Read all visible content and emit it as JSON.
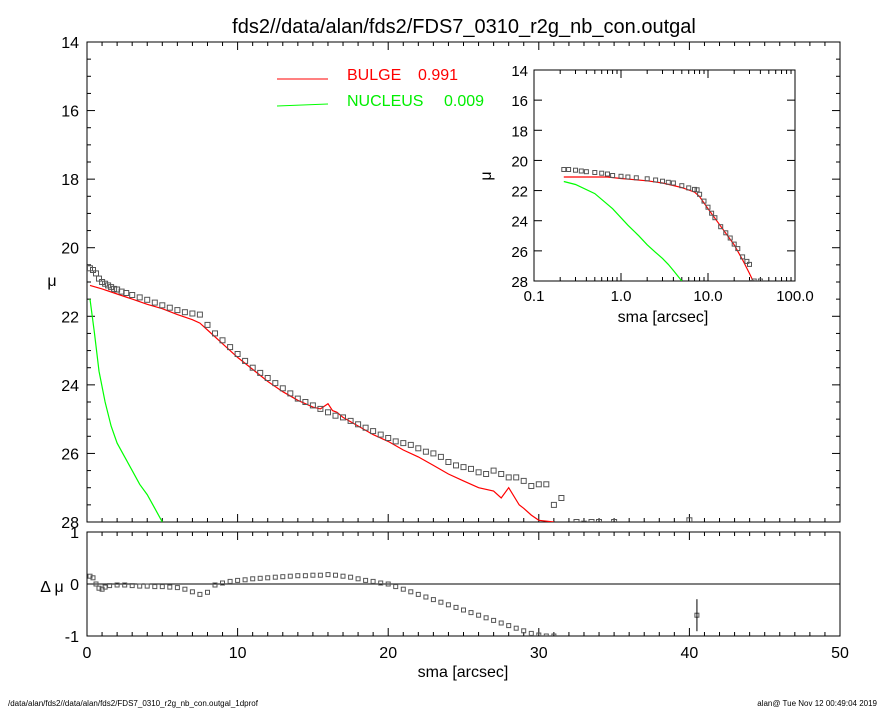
{
  "title": "fds2//data/alan/fds2/FDS7_0310_r2g_nb_con.outgal",
  "footer_left": "/data/alan/fds2//data/alan/fds2/FDS7_0310_r2g_nb_con.outgal_1dprof",
  "footer_right": "alan@  Tue Nov 12 00:49:04 2019",
  "colors": {
    "bulge": "#ff0000",
    "nucleus": "#00ff00",
    "data": "#555555",
    "axes": "#000000"
  },
  "chart_data": [
    {
      "id": "main",
      "type": "line",
      "xlabel": "sma [arcsec]",
      "ylabel": "μ",
      "xlim": [
        0,
        50
      ],
      "ylim": [
        28,
        14
      ],
      "yticks": [
        "14",
        "16",
        "18",
        "20",
        "22",
        "24",
        "26",
        "28"
      ],
      "xticks": [
        "0",
        "10",
        "20",
        "30",
        "40",
        "50"
      ],
      "legend": {
        "position": "top-center",
        "entries": [
          {
            "name": "BULGE",
            "value": "0.991",
            "color": "#ff0000"
          },
          {
            "name": "NUCLEUS",
            "value": "0.009",
            "color": "#00ff00"
          }
        ]
      },
      "series": [
        {
          "name": "BULGE",
          "style": "line",
          "x": [
            0.2,
            1,
            2,
            3,
            4,
            5,
            6,
            7,
            7.5,
            8,
            9,
            10,
            11,
            12,
            13,
            14,
            15,
            15.5,
            16,
            16.3,
            16.6,
            17,
            18,
            19,
            20,
            21,
            22,
            23,
            24,
            25,
            26,
            27,
            27.5,
            28,
            28.7,
            29,
            29.5,
            30,
            31
          ],
          "y": [
            21.1,
            21.2,
            21.35,
            21.5,
            21.65,
            21.78,
            21.95,
            22.1,
            22.2,
            22.4,
            22.8,
            23.2,
            23.55,
            23.9,
            24.2,
            24.45,
            24.65,
            24.7,
            24.55,
            24.75,
            24.8,
            24.95,
            25.2,
            25.45,
            25.65,
            25.9,
            26.1,
            26.35,
            26.6,
            26.8,
            27.0,
            27.1,
            27.3,
            27.0,
            27.5,
            27.6,
            27.8,
            27.95,
            28.0
          ]
        },
        {
          "name": "NUCLEUS",
          "style": "line",
          "x": [
            0.2,
            0.5,
            0.8,
            1.2,
            1.6,
            2.0,
            2.5,
            3.0,
            3.5,
            4.0,
            4.5,
            5.0
          ],
          "y": [
            21.5,
            22.5,
            23.6,
            24.5,
            25.2,
            25.7,
            26.1,
            26.5,
            26.9,
            27.2,
            27.6,
            28.0
          ]
        },
        {
          "name": "data",
          "style": "squares",
          "x": [
            0.2,
            0.4,
            0.6,
            0.8,
            1.0,
            1.2,
            1.4,
            1.6,
            1.8,
            2.0,
            2.3,
            2.6,
            3.0,
            3.5,
            4.0,
            4.5,
            5.0,
            5.5,
            6.0,
            6.5,
            7.0,
            7.5,
            8.0,
            8.5,
            9.0,
            9.5,
            10.0,
            10.5,
            11.0,
            11.5,
            12.0,
            12.5,
            13.0,
            13.5,
            14.0,
            14.5,
            15.0,
            15.5,
            16.0,
            16.5,
            17.0,
            17.5,
            18.0,
            18.5,
            19.0,
            19.5,
            20.0,
            20.5,
            21.0,
            21.5,
            22.0,
            22.5,
            23.0,
            23.5,
            24.0,
            24.5,
            25.0,
            25.5,
            26.0,
            26.5,
            27.0,
            27.5,
            28.0,
            28.5,
            29.0,
            29.5,
            30.0,
            30.5,
            31.0,
            31.5,
            32.0,
            32.5,
            33.0,
            33.5,
            34.0,
            35.0,
            40.0
          ],
          "y": [
            20.6,
            20.65,
            20.75,
            20.9,
            21.0,
            21.05,
            21.1,
            21.15,
            21.2,
            21.22,
            21.28,
            21.32,
            21.38,
            21.45,
            21.52,
            21.6,
            21.68,
            21.75,
            21.82,
            21.88,
            21.92,
            21.95,
            22.25,
            22.5,
            22.7,
            22.9,
            23.1,
            23.3,
            23.5,
            23.65,
            23.8,
            23.95,
            24.1,
            24.25,
            24.4,
            24.5,
            24.6,
            24.7,
            24.8,
            24.9,
            24.95,
            25.05,
            25.15,
            25.25,
            25.35,
            25.45,
            25.55,
            25.65,
            25.7,
            25.75,
            25.85,
            25.95,
            26.0,
            26.1,
            26.25,
            26.35,
            26.4,
            26.45,
            26.55,
            26.6,
            26.5,
            26.6,
            26.7,
            26.7,
            26.8,
            26.95,
            26.9,
            26.9,
            27.5,
            27.3,
            28.1,
            28.0,
            28.05,
            28.0,
            28.0,
            28.0,
            27.95
          ]
        }
      ]
    },
    {
      "id": "inset",
      "type": "line",
      "xscale": "log",
      "xlabel": "sma [arcsec]",
      "ylabel": "μ",
      "xlim": [
        0.1,
        100
      ],
      "ylim": [
        28,
        14
      ],
      "yticks": [
        "14",
        "16",
        "18",
        "20",
        "22",
        "24",
        "26",
        "28"
      ],
      "xticks": [
        "0.1",
        "1.0",
        "10.0",
        "100.0"
      ],
      "series": [
        {
          "name": "BULGE",
          "style": "line",
          "x": [
            0.22,
            0.4,
            0.7,
            1.0,
            2,
            3,
            5,
            7,
            8,
            10,
            15,
            20,
            25,
            30,
            33
          ],
          "y": [
            21.1,
            21.1,
            21.1,
            21.2,
            21.35,
            21.5,
            21.8,
            22.1,
            22.4,
            23.2,
            24.6,
            25.6,
            26.6,
            27.5,
            28.0
          ]
        },
        {
          "name": "NUCLEUS",
          "style": "line",
          "x": [
            0.22,
            0.3,
            0.5,
            0.8,
            1.2,
            1.6,
            2.0,
            2.5,
            3.0,
            3.5,
            4.0,
            5.0
          ],
          "y": [
            21.4,
            21.6,
            22.2,
            23.2,
            24.3,
            25.0,
            25.6,
            26.1,
            26.5,
            26.9,
            27.3,
            28.0
          ]
        },
        {
          "name": "data",
          "style": "squares",
          "x": [
            0.22,
            0.25,
            0.3,
            0.35,
            0.4,
            0.5,
            0.6,
            0.7,
            0.8,
            1.0,
            1.2,
            1.5,
            2.0,
            2.5,
            3.0,
            3.5,
            4.0,
            5.0,
            6.0,
            7.0,
            7.5,
            8.0,
            9.0,
            10.0,
            11.0,
            12.0,
            14.0,
            16.0,
            18.0,
            20.0,
            22.0,
            25.0,
            28.0,
            30.0,
            32.0,
            34.0,
            40.0
          ],
          "y": [
            20.6,
            20.6,
            20.65,
            20.7,
            20.75,
            20.8,
            20.85,
            20.9,
            21.0,
            21.05,
            21.1,
            21.15,
            21.22,
            21.3,
            21.38,
            21.45,
            21.5,
            21.68,
            21.82,
            21.92,
            21.95,
            22.25,
            22.7,
            23.1,
            23.5,
            23.8,
            24.4,
            24.8,
            25.15,
            25.55,
            25.85,
            26.4,
            26.7,
            26.9,
            28.1,
            28.0,
            28.0
          ]
        }
      ]
    },
    {
      "id": "residual",
      "type": "scatter",
      "xlabel": "sma [arcsec]",
      "ylabel": "Δ μ",
      "xlim": [
        0,
        50
      ],
      "ylim": [
        -1,
        1
      ],
      "yticks": [
        "1",
        "0",
        "-1"
      ],
      "xticks": [
        "0",
        "10",
        "20",
        "30",
        "40",
        "50"
      ],
      "series": [
        {
          "name": "data",
          "style": "squares",
          "x": [
            0.2,
            0.4,
            0.6,
            0.8,
            1.0,
            1.2,
            1.5,
            2.0,
            2.5,
            3.0,
            3.5,
            4.0,
            4.5,
            5.0,
            5.5,
            6.0,
            6.5,
            7.0,
            7.5,
            8.0,
            8.5,
            9.0,
            9.5,
            10.0,
            10.5,
            11.0,
            11.5,
            12.0,
            12.5,
            13.0,
            13.5,
            14.0,
            14.5,
            15.0,
            15.5,
            16.0,
            16.5,
            17.0,
            17.5,
            18.0,
            18.5,
            19.0,
            19.5,
            20.0,
            20.5,
            21.0,
            21.5,
            22.0,
            22.5,
            23.0,
            23.5,
            24.0,
            24.5,
            25.0,
            25.5,
            26.0,
            26.5,
            27.0,
            27.5,
            28.0,
            28.5,
            29.0,
            29.5,
            30.0,
            30.5,
            31.0,
            40.5
          ],
          "y": [
            0.15,
            0.12,
            0.0,
            -0.08,
            -0.1,
            -0.06,
            -0.03,
            -0.02,
            -0.02,
            -0.03,
            -0.04,
            -0.04,
            -0.05,
            -0.05,
            -0.06,
            -0.07,
            -0.1,
            -0.15,
            -0.2,
            -0.16,
            -0.02,
            0.02,
            0.05,
            0.07,
            0.08,
            0.1,
            0.11,
            0.12,
            0.13,
            0.14,
            0.15,
            0.16,
            0.16,
            0.17,
            0.17,
            0.18,
            0.17,
            0.15,
            0.13,
            0.1,
            0.07,
            0.05,
            0.02,
            0.0,
            -0.05,
            -0.1,
            -0.15,
            -0.2,
            -0.25,
            -0.3,
            -0.35,
            -0.4,
            -0.45,
            -0.5,
            -0.55,
            -0.6,
            -0.65,
            -0.7,
            -0.75,
            -0.8,
            -0.85,
            -0.9,
            -0.95,
            -0.98,
            -1.0,
            -1.0,
            -0.6
          ]
        }
      ]
    }
  ]
}
